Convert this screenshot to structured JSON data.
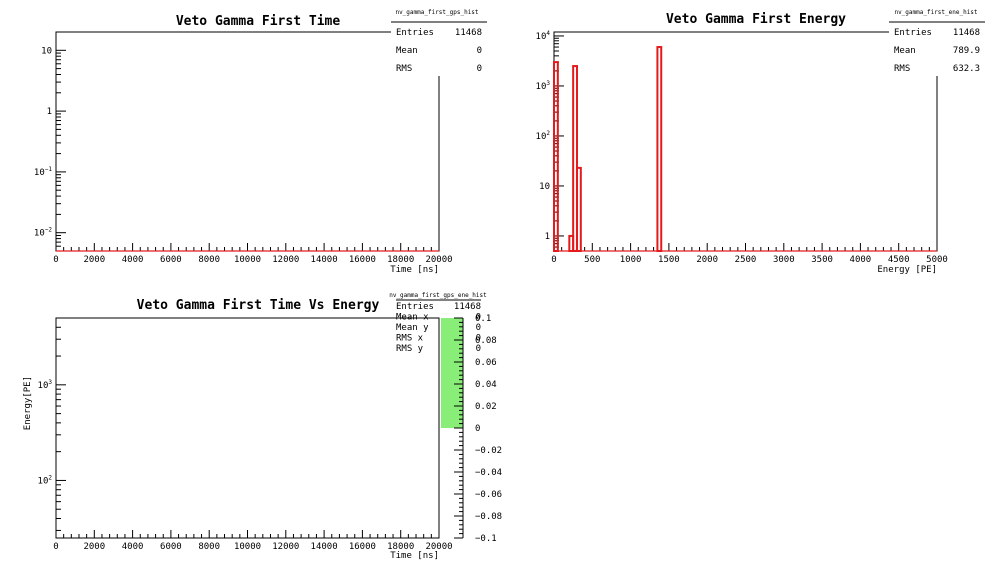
{
  "chart_data": [
    {
      "type": "bar",
      "title": "Veto Gamma First Time",
      "xlabel": "Time [ns]",
      "ylabel": "",
      "xlim": [
        0,
        20000
      ],
      "ylim": [
        0.005,
        20
      ],
      "yscale": "log",
      "x_ticks": [
        "0",
        "2000",
        "4000",
        "6000",
        "8000",
        "10000",
        "12000",
        "14000",
        "16000",
        "18000",
        "20000"
      ],
      "y_ticks": [
        {
          "value": 10,
          "label": "10"
        },
        {
          "value": 1,
          "label": "1"
        },
        {
          "value": 0.1,
          "label": "10",
          "exp": "−1"
        },
        {
          "value": 0.01,
          "label": "10",
          "exp": "−2"
        }
      ],
      "bars": [],
      "color": "#e41a1c",
      "stats": {
        "name": "nv_gamma_first_gps_hist",
        "rows": [
          {
            "label": "Entries",
            "value": "11468"
          },
          {
            "label": "Mean",
            "value": "0"
          },
          {
            "label": "RMS",
            "value": "0"
          }
        ]
      }
    },
    {
      "type": "bar",
      "title": "Veto Gamma First Energy",
      "xlabel": "Energy [PE]",
      "ylabel": "",
      "xlim": [
        0,
        5000
      ],
      "ylim": [
        0.5,
        12000
      ],
      "yscale": "log",
      "x_ticks": [
        "0",
        "500",
        "1000",
        "1500",
        "2000",
        "2500",
        "3000",
        "3500",
        "4000",
        "4500",
        "5000"
      ],
      "y_ticks": [
        {
          "value": 10000,
          "label": "10",
          "exp": "4"
        },
        {
          "value": 1000,
          "label": "10",
          "exp": "3"
        },
        {
          "value": 100,
          "label": "10",
          "exp": "2"
        },
        {
          "value": 10,
          "label": "10"
        },
        {
          "value": 1,
          "label": "1"
        }
      ],
      "bars": [
        {
          "x0": 0,
          "x1": 50,
          "y": 3000
        },
        {
          "x0": 200,
          "x1": 250,
          "y": 1
        },
        {
          "x0": 250,
          "x1": 300,
          "y": 2500
        },
        {
          "x0": 300,
          "x1": 350,
          "y": 23
        },
        {
          "x0": 1350,
          "x1": 1400,
          "y": 6000
        }
      ],
      "color": "#e41a1c",
      "stats": {
        "name": "nv_gamma_first_ene_hist",
        "rows": [
          {
            "label": "Entries",
            "value": "11468"
          },
          {
            "label": "Mean",
            "value": "789.9"
          },
          {
            "label": "RMS",
            "value": "632.3"
          }
        ]
      }
    },
    {
      "type": "heatmap",
      "title": "Veto Gamma First Time Vs Energy",
      "xlabel": "Time [ns]",
      "ylabel": "Energy[PE]",
      "xlim": [
        0,
        20000
      ],
      "ylim": [
        25,
        5000
      ],
      "yscale": "log",
      "x_ticks": [
        "0",
        "2000",
        "4000",
        "6000",
        "8000",
        "10000",
        "12000",
        "14000",
        "16000",
        "18000",
        "20000"
      ],
      "y_ticks": [
        {
          "value": 1000,
          "label": "10",
          "exp": "3"
        },
        {
          "value": 100,
          "label": "10",
          "exp": "2"
        }
      ],
      "cells": [],
      "palette": {
        "min": -0.1,
        "max": 0.1,
        "fill_from": 0,
        "fill_to": 0.1,
        "color": "#88ee77",
        "ticks": [
          {
            "value": 0.1,
            "label": "0.1"
          },
          {
            "value": 0.08,
            "label": "0.08"
          },
          {
            "value": 0.06,
            "label": "0.06"
          },
          {
            "value": 0.04,
            "label": "0.04"
          },
          {
            "value": 0.02,
            "label": "0.02"
          },
          {
            "value": 0,
            "label": "0"
          },
          {
            "value": -0.02,
            "label": "−0.02"
          },
          {
            "value": -0.04,
            "label": "−0.04"
          },
          {
            "value": -0.06,
            "label": "−0.06"
          },
          {
            "value": -0.08,
            "label": "−0.08"
          },
          {
            "value": -0.1,
            "label": "−0.1"
          }
        ]
      },
      "stats": {
        "name": "nv_gamma_first_gps_ene_hist",
        "rows": [
          {
            "label": "Entries",
            "value": "11468"
          },
          {
            "label": "Mean x",
            "value": "0"
          },
          {
            "label": "Mean y",
            "value": "0"
          },
          {
            "label": "RMS x",
            "value": "0"
          },
          {
            "label": "RMS y",
            "value": "0"
          }
        ]
      }
    }
  ]
}
